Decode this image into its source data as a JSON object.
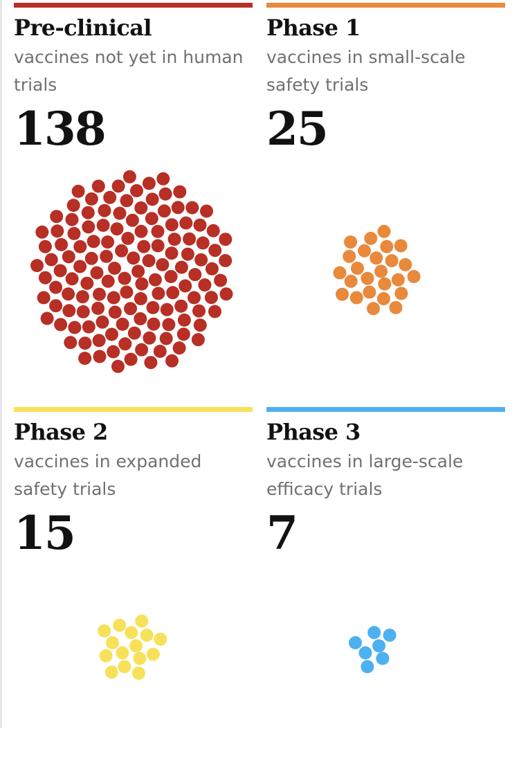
{
  "chart_data": {
    "type": "dot-cluster",
    "categories": [
      "Pre-clinical",
      "Phase 1",
      "Phase 2",
      "Phase 3"
    ],
    "values": [
      138,
      25,
      15,
      7
    ],
    "panels": [
      {
        "title": "Pre-clinical",
        "description": "vaccines not yet in human trials",
        "count": "138",
        "value": 138,
        "color": "#b72f25"
      },
      {
        "title": "Phase 1",
        "description": "vaccines in small-scale safety trials",
        "count": "25",
        "value": 25,
        "color": "#e8893c"
      },
      {
        "title": "Phase 2",
        "description": "vaccines in expanded safety trials",
        "count": "15",
        "value": 15,
        "color": "#f7e15a"
      },
      {
        "title": "Phase 3",
        "description": "vaccines in large-scale efficacy trials",
        "count": "7",
        "value": 7,
        "color": "#4db0f0"
      }
    ]
  }
}
